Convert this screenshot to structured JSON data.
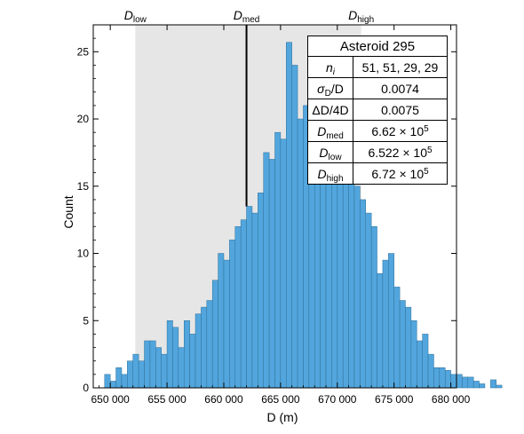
{
  "chart_data": {
    "type": "bar",
    "xlabel": "D (m)",
    "ylabel": "Count",
    "xlim": [
      648500,
      680500
    ],
    "ylim": [
      0,
      27
    ],
    "bin_width": 500,
    "bin_start": 649500,
    "x_ticks": [
      650000,
      655000,
      660000,
      665000,
      670000,
      675000,
      680000
    ],
    "x_tick_labels": [
      "650 000",
      "655 000",
      "660 000",
      "665 000",
      "670 000",
      "675 000",
      "680 000"
    ],
    "y_ticks": [
      0,
      5,
      10,
      15,
      20,
      25
    ],
    "values": [
      1,
      0.5,
      1.5,
      1,
      2,
      2.5,
      2,
      3.5,
      3.5,
      3,
      2.5,
      5,
      4.5,
      3,
      5,
      4,
      5.5,
      6,
      6.5,
      8,
      10,
      9.5,
      11,
      12,
      12.5,
      13.5,
      13,
      14.5,
      17.5,
      17,
      19,
      18.5,
      25.7,
      24,
      20,
      21,
      24.5,
      20.5,
      23,
      20,
      18.5,
      19,
      16.5,
      16,
      15,
      14,
      13,
      12,
      8.5,
      9.5,
      10,
      7.5,
      6.5,
      6,
      5,
      3.5,
      4,
      2.5,
      1.5,
      1.5,
      1.3,
      1,
      1,
      0.8,
      0.8,
      0.5,
      0.3,
      0,
      0.6,
      0.2
    ],
    "bar_color": "#52a6dd",
    "shaded_region": {
      "from": 652200,
      "to": 672100,
      "color": "#e6e6e6"
    },
    "markers": [
      {
        "name": "D",
        "sub": "low",
        "x": 652200
      },
      {
        "name": "D",
        "sub": "med",
        "x": 662000
      },
      {
        "name": "D",
        "sub": "high",
        "x": 672100
      }
    ],
    "grid": false
  },
  "stats_table": {
    "title": "Asteroid 295",
    "rows": [
      {
        "k_main": "n",
        "k_sub": "i",
        "k_rest": "",
        "value": "51, 51, 29, 29"
      },
      {
        "k_main": "σ",
        "k_sub": "D",
        "k_rest": "/D",
        "value": "0.0074"
      },
      {
        "k_main": "",
        "k_sub": "",
        "k_rest": "ΔD/4D",
        "value": "0.0075"
      },
      {
        "k_main": "D",
        "k_sub": "med",
        "k_rest": "",
        "value_base": "6.62 × 10",
        "value_exp": "5"
      },
      {
        "k_main": "D",
        "k_sub": "low",
        "k_rest": "",
        "value_base": "6.522 × 10",
        "value_exp": "5"
      },
      {
        "k_main": "D",
        "k_sub": "high",
        "k_rest": "",
        "value_base": "6.72 × 10",
        "value_exp": "5"
      }
    ]
  }
}
